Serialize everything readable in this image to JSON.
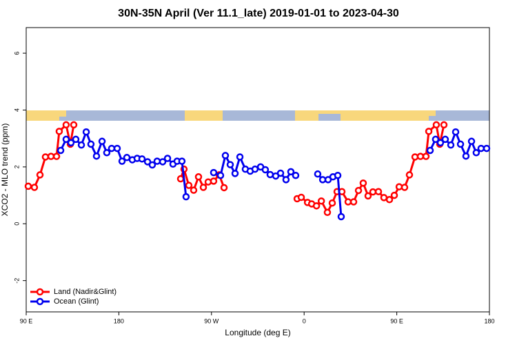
{
  "chart_data": {
    "type": "line",
    "title": "30N-35N April (Ver 11.1_late)   2019-01-01 to 2023-04-30",
    "x_label": "Longitude (deg E)",
    "y_label": "XCO2 - MLO trend (ppm)",
    "xlim": [
      90,
      540
    ],
    "ylim": [
      -3.1,
      6.9
    ],
    "xticks": [
      {
        "value": 90,
        "label": "90 E"
      },
      180,
      {
        "value": 270,
        "label": "90 W"
      },
      {
        "value": 360,
        "label": "0"
      },
      {
        "value": 450,
        "label": "90 E"
      },
      {
        "value": 540,
        "label": "180"
      }
    ],
    "yticks": [
      -2,
      0,
      2,
      4,
      6
    ],
    "legend": "bottom-left",
    "series": [
      {
        "name": "Land (Nadir&Glint)",
        "color": "#ff0000",
        "x": [
          92,
          98,
          103.4,
          108.7,
          114.1,
          119.5,
          122.1,
          128.8,
          132.9,
          136.2,
          200,
          240,
          243.3,
          248,
          252.7,
          257.4,
          262.1,
          266.8,
          272.1,
          277.5,
          282.2,
          320,
          353.2,
          357.2,
          363.3,
          367.3,
          372,
          376.7,
          382.6,
          387.3,
          392,
          396.7,
          402.7,
          408.1,
          412.8,
          417.4,
          422.1,
          426.8,
          432.2,
          437.5,
          442.9,
          447.6,
          452.3,
          457.6,
          462.3,
          467.7,
          473,
          478.4,
          481.1,
          488.4,
          491.8,
          495.8
        ],
        "values": [
          1.32,
          1.28,
          1.72,
          2.35,
          2.37,
          2.37,
          3.25,
          3.48,
          2.8,
          3.48,
          null,
          1.58,
          1.92,
          1.35,
          1.18,
          1.65,
          1.28,
          1.47,
          1.5,
          1.72,
          1.27,
          null,
          0.88,
          0.93,
          0.75,
          0.7,
          0.63,
          0.8,
          0.4,
          0.73,
          1.13,
          1.13,
          0.77,
          0.77,
          1.17,
          1.43,
          0.98,
          1.12,
          1.13,
          0.92,
          0.85,
          1.0,
          1.3,
          1.28,
          1.72,
          2.35,
          2.37,
          2.37,
          3.25,
          3.48,
          2.8,
          3.48
        ]
      },
      {
        "name": "Ocean (Glint)",
        "color": "#0000ee",
        "x": [
          123.5,
          128.8,
          133.5,
          138.2,
          143.6,
          148.3,
          152.9,
          158.3,
          163.7,
          168.3,
          173,
          178.4,
          183.1,
          187.8,
          193.1,
          197.8,
          202.5,
          207.9,
          212.5,
          217.2,
          222.6,
          227.3,
          232.6,
          236.6,
          241.3,
          245.3,
          260,
          272.1,
          278.8,
          283.5,
          288.2,
          292.9,
          297.6,
          302.9,
          307.6,
          312.3,
          317.7,
          322.3,
          327,
          332.4,
          337.1,
          342.4,
          347.1,
          351.8,
          362,
          373.2,
          378,
          383.3,
          388,
          392.7,
          396,
          440,
          482.4,
          487.7,
          492.4,
          497.1,
          502.5,
          507.2,
          511.9,
          517.2,
          522.6,
          527.2,
          531.9,
          537.3
        ],
        "values": [
          2.58,
          2.97,
          2.85,
          2.97,
          2.77,
          3.23,
          2.8,
          2.38,
          2.9,
          2.5,
          2.65,
          2.65,
          2.2,
          2.33,
          2.25,
          2.3,
          2.28,
          2.18,
          2.07,
          2.2,
          2.18,
          2.3,
          2.1,
          2.2,
          2.2,
          0.95,
          null,
          1.8,
          1.7,
          2.4,
          2.08,
          1.77,
          2.35,
          1.92,
          1.85,
          1.92,
          2.0,
          1.9,
          1.73,
          1.68,
          1.78,
          1.55,
          1.83,
          1.7,
          null,
          1.75,
          1.55,
          1.55,
          1.65,
          1.7,
          0.25,
          null,
          2.58,
          2.97,
          2.85,
          2.97,
          2.77,
          3.23,
          2.8,
          2.38,
          2.9,
          2.5,
          2.65,
          2.65
        ]
      }
    ]
  }
}
